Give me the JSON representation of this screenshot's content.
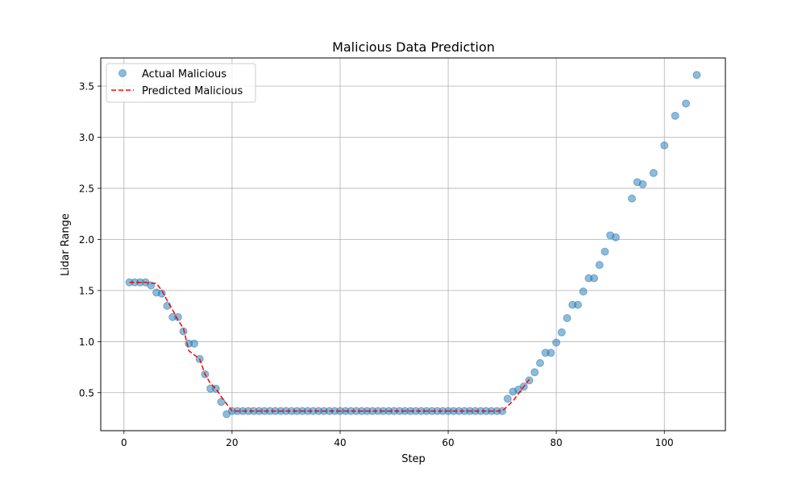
{
  "chart_data": {
    "type": "scatter",
    "title": "Malicious Data Prediction",
    "xlabel": "Step",
    "ylabel": "Lidar Range",
    "xlim": [
      -4.3,
      111.3
    ],
    "ylim": [
      0.128,
      3.776
    ],
    "xticks": [
      0,
      20,
      40,
      60,
      80,
      100
    ],
    "yticks": [
      0.5,
      1.0,
      1.5,
      2.0,
      2.5,
      3.0,
      3.5
    ],
    "xtick_labels": [
      "0",
      "20",
      "40",
      "60",
      "80",
      "100"
    ],
    "ytick_labels": [
      "0.5",
      "1.0",
      "1.5",
      "2.0",
      "2.5",
      "3.0",
      "3.5"
    ],
    "grid": true,
    "legend_position": "top-left",
    "series": [
      {
        "name": "Actual Malicious",
        "kind": "scatter",
        "color": "#1f77b4",
        "x": [
          1,
          2,
          3,
          4,
          5,
          6,
          7,
          8,
          9,
          10,
          11,
          12,
          13,
          14,
          15,
          16,
          17,
          18,
          19,
          20,
          21,
          22,
          23,
          24,
          25,
          26,
          27,
          28,
          29,
          30,
          31,
          32,
          33,
          34,
          35,
          36,
          37,
          38,
          39,
          40,
          41,
          42,
          43,
          44,
          45,
          46,
          47,
          48,
          49,
          50,
          51,
          52,
          53,
          54,
          55,
          56,
          57,
          58,
          59,
          60,
          61,
          62,
          63,
          64,
          65,
          66,
          67,
          68,
          69,
          70,
          71,
          72,
          73,
          74,
          75,
          76,
          77,
          78,
          79,
          80,
          81,
          82,
          83,
          84,
          85,
          86,
          87,
          88,
          89,
          90,
          91,
          94,
          95,
          96,
          98,
          100,
          102,
          104,
          106
        ],
        "y": [
          1.58,
          1.58,
          1.58,
          1.58,
          1.55,
          1.48,
          1.47,
          1.35,
          1.24,
          1.24,
          1.1,
          0.98,
          0.98,
          0.83,
          0.68,
          0.54,
          0.54,
          0.41,
          0.29,
          0.32,
          0.32,
          0.32,
          0.32,
          0.32,
          0.32,
          0.32,
          0.32,
          0.32,
          0.32,
          0.32,
          0.32,
          0.32,
          0.32,
          0.32,
          0.32,
          0.32,
          0.32,
          0.32,
          0.32,
          0.32,
          0.32,
          0.32,
          0.32,
          0.32,
          0.32,
          0.32,
          0.32,
          0.32,
          0.32,
          0.32,
          0.32,
          0.32,
          0.32,
          0.32,
          0.32,
          0.32,
          0.32,
          0.32,
          0.32,
          0.32,
          0.32,
          0.32,
          0.32,
          0.32,
          0.32,
          0.32,
          0.32,
          0.32,
          0.32,
          0.32,
          0.44,
          0.51,
          0.53,
          0.56,
          0.62,
          0.7,
          0.79,
          0.89,
          0.89,
          0.99,
          1.09,
          1.23,
          1.36,
          1.36,
          1.49,
          1.62,
          1.62,
          1.75,
          1.88,
          2.04,
          2.02,
          2.4,
          2.56,
          2.54,
          2.65,
          2.92,
          3.21,
          3.33,
          3.61
        ]
      },
      {
        "name": "Predicted Malicious",
        "kind": "line",
        "style": "dashed",
        "color": "#ff0000",
        "x": [
          1,
          2,
          3,
          4,
          5,
          6,
          7,
          8,
          9,
          10,
          11,
          12,
          13,
          14,
          15,
          16,
          17,
          18,
          19,
          20,
          21,
          22,
          23,
          24,
          25,
          26,
          27,
          28,
          29,
          30,
          31,
          32,
          33,
          34,
          35,
          36,
          37,
          38,
          39,
          40,
          41,
          42,
          43,
          44,
          45,
          46,
          47,
          48,
          49,
          50,
          51,
          52,
          53,
          54,
          55,
          56,
          57,
          58,
          59,
          60,
          61,
          62,
          63,
          64,
          65,
          66,
          67,
          68,
          69,
          70,
          71,
          72,
          73,
          74,
          75
        ],
        "y": [
          1.58,
          1.58,
          1.58,
          1.58,
          1.57,
          1.57,
          1.5,
          1.4,
          1.31,
          1.21,
          1.13,
          0.91,
          0.87,
          0.83,
          0.68,
          0.59,
          0.54,
          0.46,
          0.39,
          0.32,
          0.32,
          0.32,
          0.32,
          0.32,
          0.32,
          0.32,
          0.32,
          0.32,
          0.32,
          0.32,
          0.32,
          0.32,
          0.32,
          0.32,
          0.32,
          0.32,
          0.32,
          0.32,
          0.32,
          0.32,
          0.32,
          0.32,
          0.32,
          0.32,
          0.32,
          0.32,
          0.32,
          0.32,
          0.32,
          0.32,
          0.32,
          0.32,
          0.32,
          0.32,
          0.32,
          0.32,
          0.32,
          0.32,
          0.32,
          0.32,
          0.32,
          0.32,
          0.32,
          0.32,
          0.32,
          0.32,
          0.32,
          0.32,
          0.32,
          0.32,
          0.37,
          0.42,
          0.49,
          0.56,
          0.63
        ]
      }
    ]
  }
}
